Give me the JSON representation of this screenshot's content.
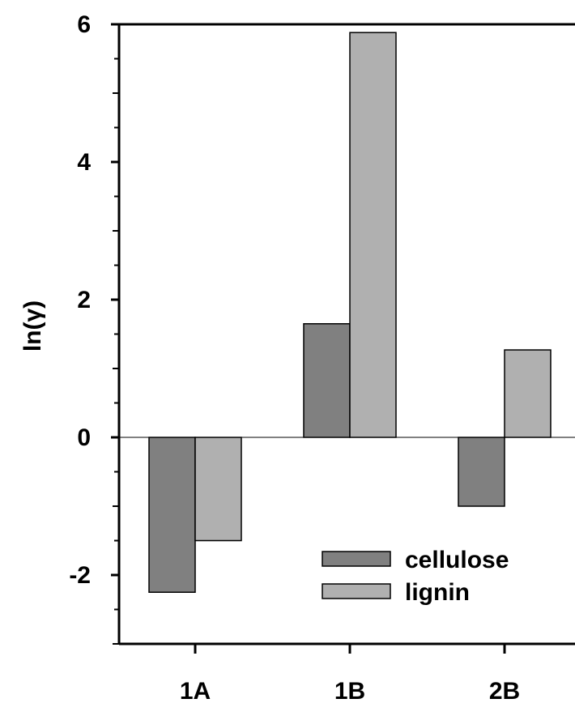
{
  "chart_data": {
    "type": "bar",
    "title": "",
    "xlabel": "",
    "ylabel": "ln(γ)",
    "ylim": [
      -3,
      6
    ],
    "yticks": [
      -2,
      0,
      2,
      4,
      6
    ],
    "categories": [
      "1A",
      "1B",
      "2B"
    ],
    "series": [
      {
        "name": "cellulose",
        "values": [
          -2.25,
          1.65,
          -1.0
        ],
        "color": "#808080"
      },
      {
        "name": "lignin",
        "values": [
          -1.5,
          5.88,
          1.27
        ],
        "color": "#b0b0b0"
      }
    ],
    "grid": false,
    "zero_line": true,
    "legend_position": "bottom-right"
  }
}
